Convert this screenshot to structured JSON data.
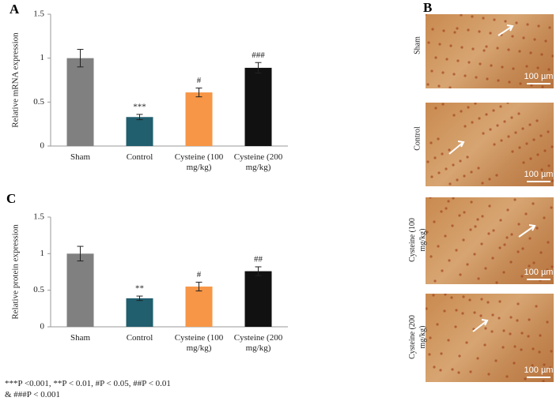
{
  "panel_labels": {
    "a": "A",
    "b": "B",
    "c": "C"
  },
  "chart_data": [
    {
      "type": "bar",
      "ylabel": "Relative mRNA expression",
      "categories": [
        "Sham",
        "Control",
        "Cysteine (100 mg/kg)",
        "Cysteine (200 mg/kg)"
      ],
      "values": [
        1.0,
        0.33,
        0.61,
        0.89
      ],
      "errors": [
        0.1,
        0.03,
        0.05,
        0.06
      ],
      "annotations": [
        null,
        "***",
        "#",
        "###"
      ],
      "colors": [
        "#808080",
        "#215e6e",
        "#f79646",
        "#111111"
      ],
      "ylim": [
        0,
        1.5
      ],
      "yticks": [
        0,
        0.5,
        1,
        1.5
      ]
    },
    {
      "type": "bar",
      "ylabel": "Relative protein expression",
      "categories": [
        "Sham",
        "Control",
        "Cysteine (100 mg/kg)",
        "Cysteine (200 mg/kg)"
      ],
      "values": [
        1.0,
        0.39,
        0.55,
        0.76
      ],
      "errors": [
        0.1,
        0.03,
        0.06,
        0.06
      ],
      "annotations": [
        null,
        "**",
        "#",
        "##"
      ],
      "colors": [
        "#808080",
        "#215e6e",
        "#f79646",
        "#111111"
      ],
      "ylim": [
        0,
        1.5
      ],
      "yticks": [
        0,
        0.5,
        1,
        1.5
      ]
    }
  ],
  "images": [
    {
      "label": "Sham",
      "scale": "100 µm"
    },
    {
      "label": "Control",
      "scale": "100 µm"
    },
    {
      "label": "Cysteine (100 mg/kg)",
      "scale": "100 µm"
    },
    {
      "label": "Cysteine (200 mg/kg)",
      "scale": "100 µm"
    }
  ],
  "footnote": [
    "***P <0.001, **P < 0.01, #P < 0.05, ##P < 0.01",
    "& ###P < 0.001"
  ]
}
